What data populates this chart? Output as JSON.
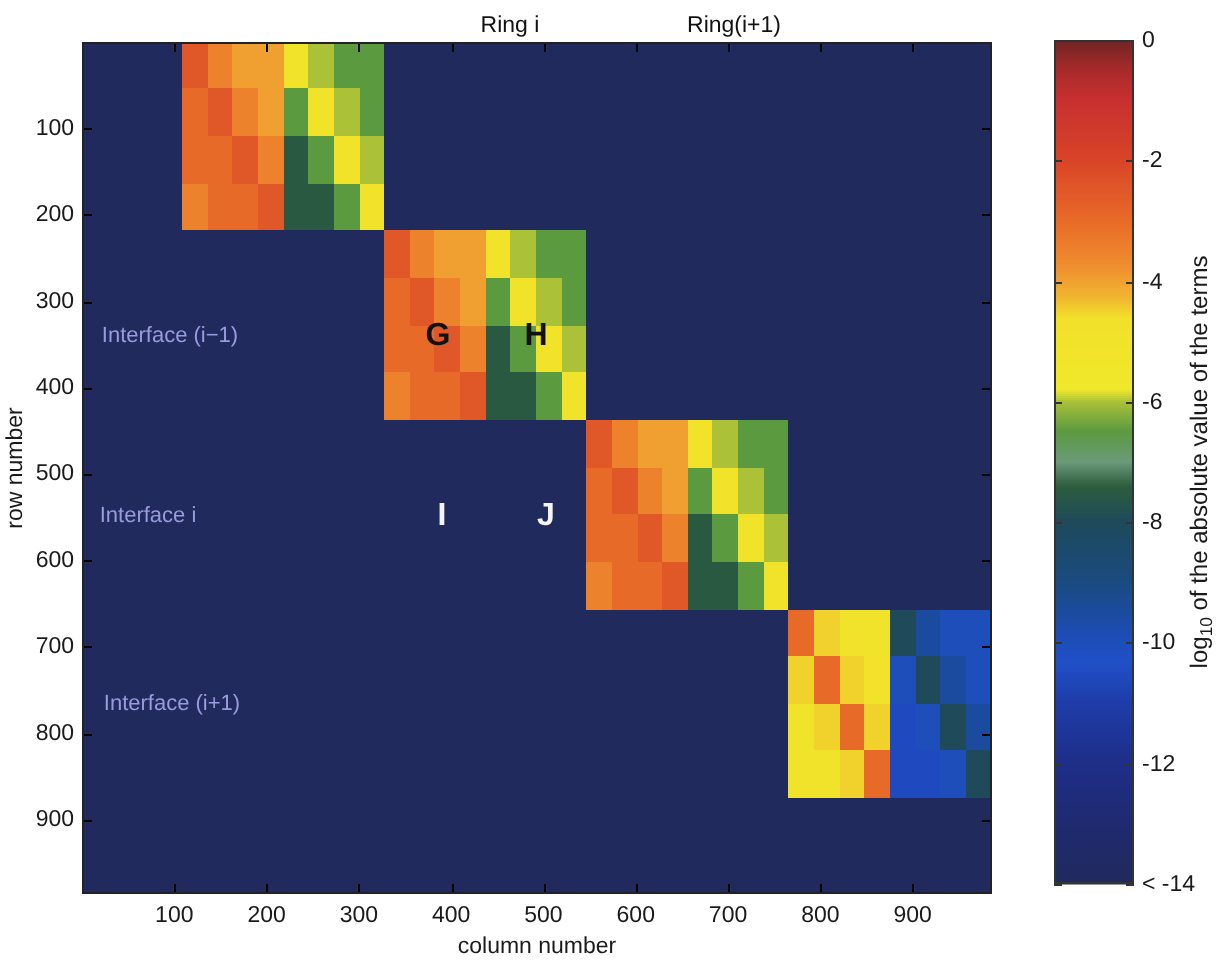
{
  "chart_data": {
    "type": "heatmap",
    "xlabel": "column number",
    "ylabel": "row number",
    "clabel": "log$_{10}$ of the absolute value of the terms",
    "xlim": [
      0,
      986
    ],
    "ylim": [
      986,
      0
    ],
    "xticks": [
      100,
      200,
      300,
      400,
      500,
      600,
      700,
      800,
      900
    ],
    "yticks": [
      100,
      200,
      300,
      400,
      500,
      600,
      700,
      800,
      900
    ],
    "clim": [
      -14,
      0
    ],
    "cticks": [
      0,
      -2,
      -4,
      -6,
      -8,
      -10,
      -12,
      {
        "value": -14,
        "label": "< -14"
      }
    ],
    "annotations": [
      "Ring i",
      "Ring(i+1)",
      "Interface (i−1)",
      "G",
      "H",
      "Interface i",
      "I",
      "J",
      "Interface (i+1)"
    ],
    "cells": [
      [
        -14,
        -14,
        -14,
        -14,
        -2.5,
        -3.5,
        -4,
        -4,
        -5,
        -6,
        -6.5,
        -6.5,
        -14,
        -14,
        -14,
        -14,
        -14,
        -14,
        -14,
        -14,
        -14,
        -14,
        -14,
        -14,
        -14,
        -14,
        -14,
        -14,
        -14,
        -14,
        -14,
        -14,
        -14,
        -14,
        -14,
        -14
      ],
      [
        -14,
        -14,
        -14,
        -14,
        -2.5,
        -3.5,
        -4,
        -4,
        -5,
        -6,
        -6.5,
        -6.5,
        -14,
        -14,
        -14,
        -14,
        -14,
        -14,
        -14,
        -14,
        -14,
        -14,
        -14,
        -14,
        -14,
        -14,
        -14,
        -14,
        -14,
        -14,
        -14,
        -14,
        -14,
        -14,
        -14,
        -14
      ],
      [
        -14,
        -14,
        -14,
        -14,
        -3,
        -2.5,
        -3.5,
        -4,
        -6.5,
        -5,
        -6,
        -6.5,
        -14,
        -14,
        -14,
        -14,
        -14,
        -14,
        -14,
        -14,
        -14,
        -14,
        -14,
        -14,
        -14,
        -14,
        -14,
        -14,
        -14,
        -14,
        -14,
        -14,
        -14,
        -14,
        -14,
        -14
      ],
      [
        -14,
        -14,
        -14,
        -14,
        -3,
        -2.5,
        -3.5,
        -4,
        -6.5,
        -5,
        -6,
        -6.5,
        -14,
        -14,
        -14,
        -14,
        -14,
        -14,
        -14,
        -14,
        -14,
        -14,
        -14,
        -14,
        -14,
        -14,
        -14,
        -14,
        -14,
        -14,
        -14,
        -14,
        -14,
        -14,
        -14,
        -14
      ],
      [
        -14,
        -14,
        -14,
        -14,
        -3,
        -3,
        -2.5,
        -3.5,
        -7.5,
        -6.5,
        -5,
        -6,
        -14,
        -14,
        -14,
        -14,
        -14,
        -14,
        -14,
        -14,
        -14,
        -14,
        -14,
        -14,
        -14,
        -14,
        -14,
        -14,
        -14,
        -14,
        -14,
        -14,
        -14,
        -14,
        -14,
        -14
      ],
      [
        -14,
        -14,
        -14,
        -14,
        -3,
        -3,
        -2.5,
        -3.5,
        -7.5,
        -6.5,
        -5,
        -6,
        -14,
        -14,
        -14,
        -14,
        -14,
        -14,
        -14,
        -14,
        -14,
        -14,
        -14,
        -14,
        -14,
        -14,
        -14,
        -14,
        -14,
        -14,
        -14,
        -14,
        -14,
        -14,
        -14,
        -14
      ],
      [
        -14,
        -14,
        -14,
        -14,
        -3.5,
        -3,
        -3,
        -2.5,
        -7.5,
        -7.5,
        -6.5,
        -5,
        -14,
        -14,
        -14,
        -14,
        -14,
        -14,
        -14,
        -14,
        -14,
        -14,
        -14,
        -14,
        -14,
        -14,
        -14,
        -14,
        -14,
        -14,
        -14,
        -14,
        -14,
        -14,
        -14,
        -14
      ],
      [
        -14,
        -14,
        -14,
        -14,
        -3.5,
        -3,
        -3,
        -2.5,
        -7.5,
        -7.5,
        -6.5,
        -5,
        -14,
        -14,
        -14,
        -14,
        -14,
        -14,
        -14,
        -14,
        -14,
        -14,
        -14,
        -14,
        -14,
        -14,
        -14,
        -14,
        -14,
        -14,
        -14,
        -14,
        -14,
        -14,
        -14,
        -14
      ],
      [
        -14,
        -14,
        -14,
        -14,
        -14,
        -14,
        -14,
        -14,
        -14,
        -14,
        -14,
        -14,
        -2.5,
        -3.5,
        -4,
        -4,
        -5,
        -6,
        -6.5,
        -6.5,
        -14,
        -14,
        -14,
        -14,
        -14,
        -14,
        -14,
        -14,
        -14,
        -14,
        -14,
        -14,
        -14,
        -14,
        -14,
        -14
      ],
      [
        -14,
        -14,
        -14,
        -14,
        -14,
        -14,
        -14,
        -14,
        -14,
        -14,
        -14,
        -14,
        -2.5,
        -3.5,
        -4,
        -4,
        -5,
        -6,
        -6.5,
        -6.5,
        -14,
        -14,
        -14,
        -14,
        -14,
        -14,
        -14,
        -14,
        -14,
        -14,
        -14,
        -14,
        -14,
        -14,
        -14,
        -14
      ],
      [
        -14,
        -14,
        -14,
        -14,
        -14,
        -14,
        -14,
        -14,
        -14,
        -14,
        -14,
        -14,
        -3,
        -2.5,
        -3.5,
        -4,
        -6.5,
        -5,
        -6,
        -6.5,
        -14,
        -14,
        -14,
        -14,
        -14,
        -14,
        -14,
        -14,
        -14,
        -14,
        -14,
        -14,
        -14,
        -14,
        -14,
        -14
      ],
      [
        -14,
        -14,
        -14,
        -14,
        -14,
        -14,
        -14,
        -14,
        -14,
        -14,
        -14,
        -14,
        -3,
        -2.5,
        -3.5,
        -4,
        -6.5,
        -5,
        -6,
        -6.5,
        -14,
        -14,
        -14,
        -14,
        -14,
        -14,
        -14,
        -14,
        -14,
        -14,
        -14,
        -14,
        -14,
        -14,
        -14,
        -14
      ],
      [
        -14,
        -14,
        -14,
        -14,
        -14,
        -14,
        -14,
        -14,
        -14,
        -14,
        -14,
        -14,
        -3,
        -3,
        -2.5,
        -3.5,
        -7.5,
        -6.5,
        -5,
        -6,
        -14,
        -14,
        -14,
        -14,
        -14,
        -14,
        -14,
        -14,
        -14,
        -14,
        -14,
        -14,
        -14,
        -14,
        -14,
        -14
      ],
      [
        -14,
        -14,
        -14,
        -14,
        -14,
        -14,
        -14,
        -14,
        -14,
        -14,
        -14,
        -14,
        -3,
        -3,
        -2.5,
        -3.5,
        -7.5,
        -6.5,
        -5,
        -6,
        -14,
        -14,
        -14,
        -14,
        -14,
        -14,
        -14,
        -14,
        -14,
        -14,
        -14,
        -14,
        -14,
        -14,
        -14,
        -14
      ],
      [
        -14,
        -14,
        -14,
        -14,
        -14,
        -14,
        -14,
        -14,
        -14,
        -14,
        -14,
        -14,
        -3.5,
        -3,
        -3,
        -2.5,
        -7.5,
        -7.5,
        -6.5,
        -5,
        -14,
        -14,
        -14,
        -14,
        -14,
        -14,
        -14,
        -14,
        -14,
        -14,
        -14,
        -14,
        -14,
        -14,
        -14,
        -14
      ],
      [
        -14,
        -14,
        -14,
        -14,
        -14,
        -14,
        -14,
        -14,
        -14,
        -14,
        -14,
        -14,
        -3.5,
        -3,
        -3,
        -2.5,
        -7.5,
        -7.5,
        -6.5,
        -5,
        -14,
        -14,
        -14,
        -14,
        -14,
        -14,
        -14,
        -14,
        -14,
        -14,
        -14,
        -14,
        -14,
        -14,
        -14,
        -14
      ],
      [
        -14,
        -14,
        -14,
        -14,
        -14,
        -14,
        -14,
        -14,
        -14,
        -14,
        -14,
        -14,
        -14,
        -14,
        -14,
        -14,
        -14,
        -14,
        -14,
        -14,
        -2.5,
        -3.5,
        -4,
        -4,
        -5,
        -6,
        -6.5,
        -6.5,
        -14,
        -14,
        -14,
        -14,
        -14,
        -14,
        -14,
        -14
      ],
      [
        -14,
        -14,
        -14,
        -14,
        -14,
        -14,
        -14,
        -14,
        -14,
        -14,
        -14,
        -14,
        -14,
        -14,
        -14,
        -14,
        -14,
        -14,
        -14,
        -14,
        -2.5,
        -3.5,
        -4,
        -4,
        -5,
        -6,
        -6.5,
        -6.5,
        -14,
        -14,
        -14,
        -14,
        -14,
        -14,
        -14,
        -14
      ],
      [
        -14,
        -14,
        -14,
        -14,
        -14,
        -14,
        -14,
        -14,
        -14,
        -14,
        -14,
        -14,
        -14,
        -14,
        -14,
        -14,
        -14,
        -14,
        -14,
        -14,
        -3,
        -2.5,
        -3.5,
        -4,
        -6.5,
        -5,
        -6,
        -6.5,
        -14,
        -14,
        -14,
        -14,
        -14,
        -14,
        -14,
        -14
      ],
      [
        -14,
        -14,
        -14,
        -14,
        -14,
        -14,
        -14,
        -14,
        -14,
        -14,
        -14,
        -14,
        -14,
        -14,
        -14,
        -14,
        -14,
        -14,
        -14,
        -14,
        -3,
        -2.5,
        -3.5,
        -4,
        -6.5,
        -5,
        -6,
        -6.5,
        -14,
        -14,
        -14,
        -14,
        -14,
        -14,
        -14,
        -14
      ],
      [
        -14,
        -14,
        -14,
        -14,
        -14,
        -14,
        -14,
        -14,
        -14,
        -14,
        -14,
        -14,
        -14,
        -14,
        -14,
        -14,
        -14,
        -14,
        -14,
        -14,
        -3,
        -3,
        -2.5,
        -3.5,
        -7.5,
        -6.5,
        -5,
        -6,
        -14,
        -14,
        -14,
        -14,
        -14,
        -14,
        -14,
        -14
      ],
      [
        -14,
        -14,
        -14,
        -14,
        -14,
        -14,
        -14,
        -14,
        -14,
        -14,
        -14,
        -14,
        -14,
        -14,
        -14,
        -14,
        -14,
        -14,
        -14,
        -14,
        -3,
        -3,
        -2.5,
        -3.5,
        -7.5,
        -6.5,
        -5,
        -6,
        -14,
        -14,
        -14,
        -14,
        -14,
        -14,
        -14,
        -14
      ],
      [
        -14,
        -14,
        -14,
        -14,
        -14,
        -14,
        -14,
        -14,
        -14,
        -14,
        -14,
        -14,
        -14,
        -14,
        -14,
        -14,
        -14,
        -14,
        -14,
        -14,
        -3.5,
        -3,
        -3,
        -2.5,
        -7.5,
        -7.5,
        -6.5,
        -5,
        -14,
        -14,
        -14,
        -14,
        -14,
        -14,
        -14,
        -14
      ],
      [
        -14,
        -14,
        -14,
        -14,
        -14,
        -14,
        -14,
        -14,
        -14,
        -14,
        -14,
        -14,
        -14,
        -14,
        -14,
        -14,
        -14,
        -14,
        -14,
        -14,
        -3.5,
        -3,
        -3,
        -2.5,
        -7.5,
        -7.5,
        -6.5,
        -5,
        -14,
        -14,
        -14,
        -14,
        -14,
        -14,
        -14,
        -14
      ],
      [
        -14,
        -14,
        -14,
        -14,
        -14,
        -14,
        -14,
        -14,
        -14,
        -14,
        -14,
        -14,
        -14,
        -14,
        -14,
        -14,
        -14,
        -14,
        -14,
        -14,
        -14,
        -14,
        -14,
        -14,
        -14,
        -14,
        -14,
        -14,
        -3,
        -4.5,
        -5,
        -5,
        -8,
        -9.5,
        -10,
        -10
      ],
      [
        -14,
        -14,
        -14,
        -14,
        -14,
        -14,
        -14,
        -14,
        -14,
        -14,
        -14,
        -14,
        -14,
        -14,
        -14,
        -14,
        -14,
        -14,
        -14,
        -14,
        -14,
        -14,
        -14,
        -14,
        -14,
        -14,
        -14,
        -14,
        -3,
        -4.5,
        -5,
        -5,
        -8,
        -9.5,
        -10,
        -10
      ],
      [
        -14,
        -14,
        -14,
        -14,
        -14,
        -14,
        -14,
        -14,
        -14,
        -14,
        -14,
        -14,
        -14,
        -14,
        -14,
        -14,
        -14,
        -14,
        -14,
        -14,
        -14,
        -14,
        -14,
        -14,
        -14,
        -14,
        -14,
        -14,
        -4.5,
        -3,
        -4.5,
        -5,
        -10,
        -8,
        -9.5,
        -10
      ],
      [
        -14,
        -14,
        -14,
        -14,
        -14,
        -14,
        -14,
        -14,
        -14,
        -14,
        -14,
        -14,
        -14,
        -14,
        -14,
        -14,
        -14,
        -14,
        -14,
        -14,
        -14,
        -14,
        -14,
        -14,
        -14,
        -14,
        -14,
        -14,
        -4.5,
        -3,
        -4.5,
        -5,
        -10,
        -8,
        -9.5,
        -10
      ],
      [
        -14,
        -14,
        -14,
        -14,
        -14,
        -14,
        -14,
        -14,
        -14,
        -14,
        -14,
        -14,
        -14,
        -14,
        -14,
        -14,
        -14,
        -14,
        -14,
        -14,
        -14,
        -14,
        -14,
        -14,
        -14,
        -14,
        -14,
        -14,
        -5,
        -4.5,
        -3,
        -4.5,
        -10.5,
        -10,
        -8,
        -9.5
      ],
      [
        -14,
        -14,
        -14,
        -14,
        -14,
        -14,
        -14,
        -14,
        -14,
        -14,
        -14,
        -14,
        -14,
        -14,
        -14,
        -14,
        -14,
        -14,
        -14,
        -14,
        -14,
        -14,
        -14,
        -14,
        -14,
        -14,
        -14,
        -14,
        -5,
        -4.5,
        -3,
        -4.5,
        -10.5,
        -10,
        -8,
        -9.5
      ],
      [
        -14,
        -14,
        -14,
        -14,
        -14,
        -14,
        -14,
        -14,
        -14,
        -14,
        -14,
        -14,
        -14,
        -14,
        -14,
        -14,
        -14,
        -14,
        -14,
        -14,
        -14,
        -14,
        -14,
        -14,
        -14,
        -14,
        -14,
        -14,
        -5,
        -5,
        -4.5,
        -3,
        -10.5,
        -10.5,
        -10,
        -8
      ],
      [
        -14,
        -14,
        -14,
        -14,
        -14,
        -14,
        -14,
        -14,
        -14,
        -14,
        -14,
        -14,
        -14,
        -14,
        -14,
        -14,
        -14,
        -14,
        -14,
        -14,
        -14,
        -14,
        -14,
        -14,
        -14,
        -14,
        -14,
        -14,
        -5,
        -5,
        -4.5,
        -3,
        -10.5,
        -10.5,
        -10,
        -8
      ],
      [
        -14,
        -14,
        -14,
        -14,
        -14,
        -14,
        -14,
        -14,
        -14,
        -14,
        -14,
        -14,
        -14,
        -14,
        -14,
        -14,
        -14,
        -14,
        -14,
        -14,
        -14,
        -14,
        -14,
        -14,
        -14,
        -14,
        -14,
        -14,
        -14,
        -14,
        -14,
        -14,
        -14,
        -14,
        -14,
        -14
      ],
      [
        -14,
        -14,
        -14,
        -14,
        -14,
        -14,
        -14,
        -14,
        -14,
        -14,
        -14,
        -14,
        -14,
        -14,
        -14,
        -14,
        -14,
        -14,
        -14,
        -14,
        -14,
        -14,
        -14,
        -14,
        -14,
        -14,
        -14,
        -14,
        -14,
        -14,
        -14,
        -14,
        -14,
        -14,
        -14,
        -14
      ],
      [
        -14,
        -14,
        -14,
        -14,
        -14,
        -14,
        -14,
        -14,
        -14,
        -14,
        -14,
        -14,
        -14,
        -14,
        -14,
        -14,
        -14,
        -14,
        -14,
        -14,
        -14,
        -14,
        -14,
        -14,
        -14,
        -14,
        -14,
        -14,
        -14,
        -14,
        -14,
        -14,
        -14,
        -14,
        -14,
        -14
      ],
      [
        -14,
        -14,
        -14,
        -14,
        -14,
        -14,
        -14,
        -14,
        -14,
        -14,
        -14,
        -14,
        -14,
        -14,
        -14,
        -14,
        -14,
        -14,
        -14,
        -14,
        -14,
        -14,
        -14,
        -14,
        -14,
        -14,
        -14,
        -14,
        -14,
        -14,
        -14,
        -14,
        -14,
        -14,
        -14,
        -14
      ]
    ]
  }
}
